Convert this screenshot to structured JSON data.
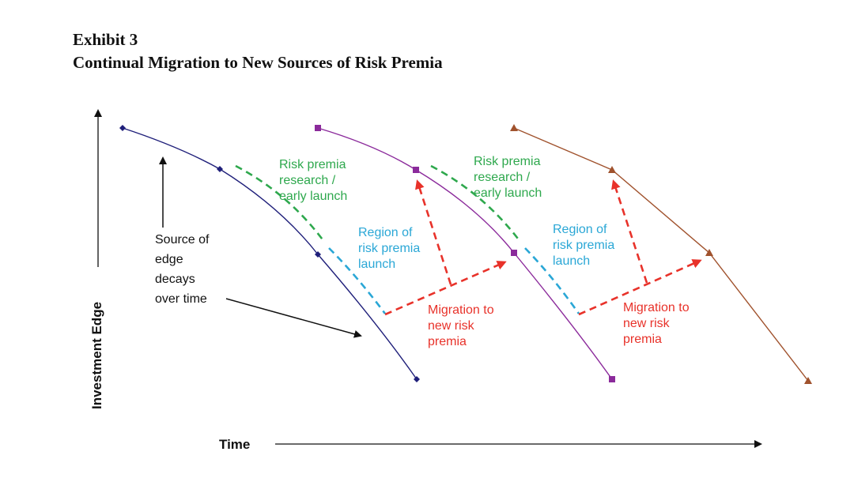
{
  "exhibit": {
    "number": "Exhibit 3",
    "title": "Continual Migration to New Sources of Risk Premia"
  },
  "axes": {
    "y_label": "Investment Edge",
    "x_label": "Time"
  },
  "annotations": {
    "decay": [
      "Source of",
      "edge",
      "decays",
      "over time"
    ],
    "research_1": [
      "Risk premia",
      "research /",
      "early launch"
    ],
    "region_1": [
      "Region of",
      "risk premia",
      "launch"
    ],
    "migration_1": [
      "Migration to",
      "new risk",
      "premia"
    ],
    "research_2": [
      "Risk premia",
      "research /",
      "early launch"
    ],
    "region_2": [
      "Region of",
      "risk premia",
      "launch"
    ],
    "migration_2": [
      "Migration to",
      "new risk",
      "premia"
    ]
  },
  "series": [
    {
      "name": "",
      "marker": "diamond",
      "color": "#1f1f7a"
    },
    {
      "name": "",
      "marker": "square",
      "color": "#8b2a9b"
    },
    {
      "name": "",
      "marker": "triangle",
      "color": "#a0522d"
    }
  ],
  "colors": {
    "research": "#2ea84d",
    "region": "#2aa7d6",
    "migration": "#e8322a",
    "text": "#111111"
  }
}
